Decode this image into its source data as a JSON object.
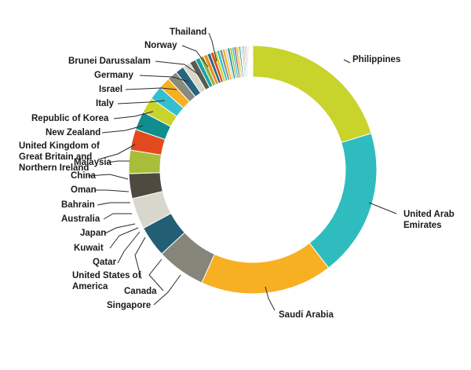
{
  "chart_data": {
    "type": "donut",
    "title": "",
    "legend": "none (callout labels)",
    "start_angle_deg": 0,
    "direction": "clockwise",
    "series": [
      {
        "label": "Philippines",
        "value": 20.0,
        "color": "#c8d32b"
      },
      {
        "label": "United Arab Emirates",
        "value": 19.0,
        "color": "#2fbcbf"
      },
      {
        "label": "Saudi Arabia",
        "value": 17.0,
        "color": "#f6b021"
      },
      {
        "label": "Singapore",
        "value": 6.3,
        "color": "#858579"
      },
      {
        "label": "Canada",
        "value": 4.0,
        "color": "#225f75"
      },
      {
        "label": "United States of America",
        "value": 4.0,
        "color": "#d9d6cb"
      },
      {
        "label": "Qatar",
        "value": 0.0,
        "color": "#f28a1e"
      },
      {
        "label": "Kuwait",
        "value": 0.0,
        "color": "#71a4b4"
      },
      {
        "label": "Japan",
        "value": 0.0,
        "color": "#e7e7dd"
      },
      {
        "label": "Australia",
        "value": 0.0,
        "color": "#c8d32b"
      },
      {
        "label": "Bahrain",
        "value": 0.0,
        "color": "#2fbcbf"
      },
      {
        "label": "Oman",
        "value": 0.0,
        "color": "#f6b021"
      },
      {
        "label": "China",
        "value": 3.2,
        "color": "#4e4a40"
      },
      {
        "label": "Malaysia",
        "value": 3.0,
        "color": "#a8be3a"
      },
      {
        "label": "United Kingdom of Great Britain and Northern Ireland",
        "value": 2.7,
        "color": "#e24a1e"
      },
      {
        "label": "New Zealand",
        "value": 2.4,
        "color": "#0f8d8f"
      },
      {
        "label": "Republic of Korea",
        "value": 2.0,
        "color": "#c8d32b"
      },
      {
        "label": "Italy",
        "value": 1.8,
        "color": "#33bfd0"
      },
      {
        "label": "Israel",
        "value": 1.5,
        "color": "#f6b021"
      },
      {
        "label": "Germany",
        "value": 1.3,
        "color": "#888a7c"
      },
      {
        "label": "Brunei Darussalam",
        "value": 1.1,
        "color": "#26657e"
      },
      {
        "label": "Norway",
        "value": 1.0,
        "color": "#d9d6cb"
      },
      {
        "label": "Thailand",
        "value": 0.8,
        "color": "#5a5a4e"
      },
      {
        "label": "",
        "value": 0.6,
        "color": "#1aa2ad"
      },
      {
        "label": "",
        "value": 0.55,
        "color": "#8fb33a"
      },
      {
        "label": "",
        "value": 0.5,
        "color": "#f28a1e"
      },
      {
        "label": "",
        "value": 0.45,
        "color": "#2a6b82"
      },
      {
        "label": "",
        "value": 0.42,
        "color": "#e24a1e"
      },
      {
        "label": "",
        "value": 0.4,
        "color": "#c8d32b"
      },
      {
        "label": "",
        "value": 0.38,
        "color": "#33bfd0"
      },
      {
        "label": "",
        "value": 0.36,
        "color": "#888a7c"
      },
      {
        "label": "",
        "value": 0.34,
        "color": "#f6b021"
      },
      {
        "label": "",
        "value": 0.32,
        "color": "#d9d6cb"
      },
      {
        "label": "",
        "value": 0.3,
        "color": "#0f8d8f"
      },
      {
        "label": "",
        "value": 0.28,
        "color": "#a8be3a"
      },
      {
        "label": "",
        "value": 0.26,
        "color": "#2fbcbf"
      },
      {
        "label": "",
        "value": 0.24,
        "color": "#5a5a4e"
      },
      {
        "label": "",
        "value": 0.22,
        "color": "#f28a1e"
      },
      {
        "label": "",
        "value": 0.2,
        "color": "#c8d32b"
      },
      {
        "label": "",
        "value": 0.19,
        "color": "#26657e"
      },
      {
        "label": "",
        "value": 0.18,
        "color": "#d9d6cb"
      },
      {
        "label": "",
        "value": 0.17,
        "color": "#33bfd0"
      },
      {
        "label": "",
        "value": 0.16,
        "color": "#888a7c"
      },
      {
        "label": "",
        "value": 0.15,
        "color": "#a8be3a"
      },
      {
        "label": "",
        "value": 0.14,
        "color": "#e24a1e"
      },
      {
        "label": "",
        "value": 0.13,
        "color": "#f6b021"
      },
      {
        "label": "",
        "value": 0.12,
        "color": "#2fbcbf"
      },
      {
        "label": "",
        "value": 0.11,
        "color": "#d9d6cb"
      },
      {
        "label": "",
        "value": 0.1,
        "color": "#c8d32b"
      },
      {
        "label": "",
        "value": 0.1,
        "color": "#888a7c"
      },
      {
        "label": "",
        "value": 0.1,
        "color": "#33bfd0"
      },
      {
        "label": "",
        "value": 0.1,
        "color": "#e7e7dd"
      }
    ]
  },
  "labels": {
    "philippines": "Philippines",
    "uae_line1": "United Arab",
    "uae_line2": "Emirates",
    "saudi": "Saudi Arabia",
    "singapore": "Singapore",
    "canada": "Canada",
    "usa_line1": "United States of",
    "usa_line2": "America",
    "qatar": "Qatar",
    "kuwait": "Kuwait",
    "japan": "Japan",
    "australia": "Australia",
    "bahrain": "Bahrain",
    "oman": "Oman",
    "china": "China",
    "malaysia": "Malaysia",
    "uk_line1": "United Kingdom of",
    "uk_line2": "Great Britain and",
    "uk_line3": "Northern Ireland",
    "new_zealand": "New Zealand",
    "korea": "Republic of Korea",
    "italy": "Italy",
    "israel": "Israel",
    "germany": "Germany",
    "brunei": "Brunei Darussalam",
    "norway": "Norway",
    "thailand": "Thailand"
  }
}
